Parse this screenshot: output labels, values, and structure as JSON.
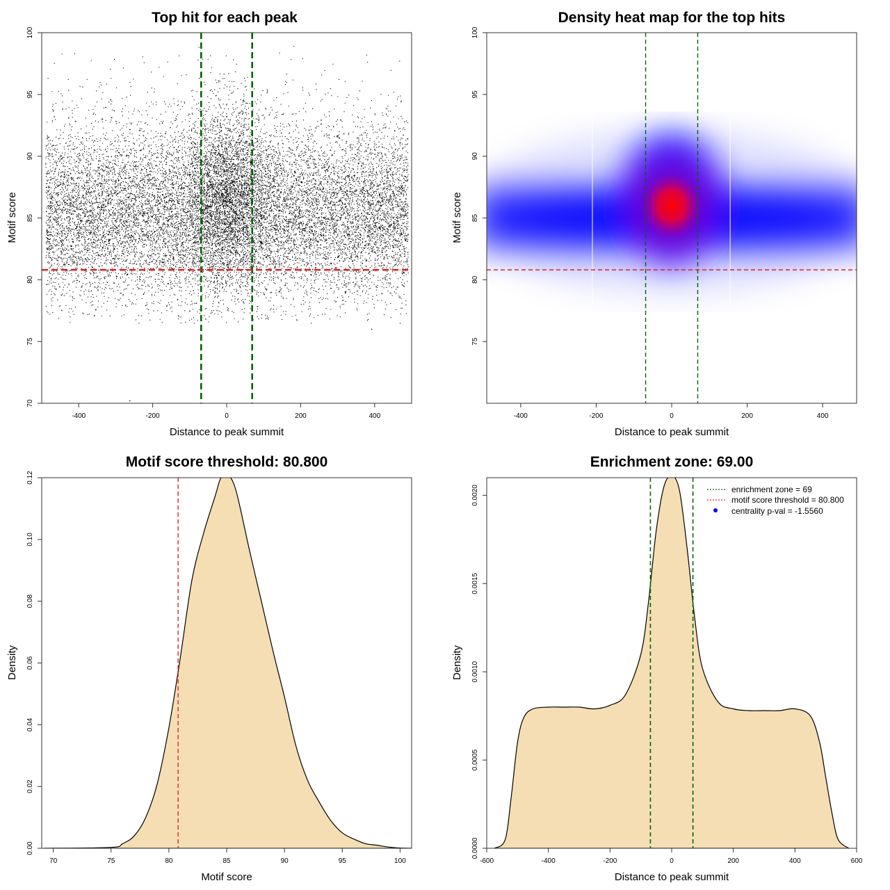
{
  "colors": {
    "threshold": "#dd2222",
    "zone": "#006400",
    "fill": "#f5deb3",
    "point": "#000000",
    "heat_low": "#0000ff",
    "heat_high": "#ff0000",
    "centrality": "#0000ff"
  },
  "chart_data": [
    {
      "type": "scatter",
      "title": "Top hit for each peak",
      "xlabel": "Distance to peak summit",
      "ylabel": "Motif score",
      "xlim": [
        -500,
        500
      ],
      "ylim": [
        70,
        100
      ],
      "xticks": [
        -400,
        -200,
        0,
        200,
        400
      ],
      "yticks": [
        70,
        75,
        80,
        85,
        90,
        95,
        100
      ],
      "xtick_labels": [
        "-400",
        "-200",
        "0",
        "200",
        "400"
      ],
      "ytick_labels": [
        "70",
        "75",
        "80",
        "85",
        "90",
        "95",
        "100"
      ],
      "description": "~25000 points; x uniform in [-490, 490] with central enrichment, y mostly 80-92, centered ~85",
      "x_range": [
        -490,
        490
      ],
      "score_mode": 85,
      "score_spread_sd": 3.4,
      "central_cluster": {
        "x_sd": 60,
        "y_mean": 87,
        "y_sd": 3.5
      },
      "hlines": [
        {
          "y": 80.8,
          "color": "red",
          "style": "dashed"
        }
      ],
      "vlines": [
        {
          "x": -69,
          "color": "darkgreen",
          "style": "dashed"
        },
        {
          "x": 69,
          "color": "darkgreen",
          "style": "dashed"
        }
      ]
    },
    {
      "type": "heatmap",
      "title": "Density heat map for the top hits",
      "xlabel": "Distance to peak summit",
      "ylabel": "Motif score",
      "xlim": [
        -490,
        490
      ],
      "ylim": [
        70,
        100
      ],
      "xticks": [
        -400,
        -200,
        0,
        200,
        400
      ],
      "yticks": [
        75,
        80,
        85,
        90,
        95,
        100
      ],
      "xtick_labels": [
        "-400",
        "-200",
        "0",
        "200",
        "400"
      ],
      "ytick_labels": [
        "75",
        "80",
        "85",
        "90",
        "95",
        "100"
      ],
      "density_peak": {
        "x": 0,
        "y": 86
      },
      "band_y_center": 85,
      "hlines": [
        {
          "y": 80.8,
          "color": "red",
          "style": "dashed"
        }
      ],
      "vlines": [
        {
          "x": -69,
          "color": "darkgreen",
          "style": "dashed"
        },
        {
          "x": 69,
          "color": "darkgreen",
          "style": "dashed"
        }
      ]
    },
    {
      "type": "area",
      "title": "Motif score threshold: 80.800",
      "xlabel": "Motif score",
      "ylabel": "Density",
      "xlim": [
        69,
        101
      ],
      "ylim": [
        0,
        0.12
      ],
      "xticks": [
        70,
        75,
        80,
        85,
        90,
        95,
        100
      ],
      "yticks": [
        0.0,
        0.02,
        0.04,
        0.06,
        0.08,
        0.1,
        0.12
      ],
      "xtick_labels": [
        "70",
        "75",
        "80",
        "85",
        "90",
        "95",
        "100"
      ],
      "ytick_labels": [
        "0.00",
        "0.02",
        "0.04",
        "0.06",
        "0.08",
        "0.10",
        "0.12"
      ],
      "x": [
        69.2,
        75,
        76,
        77,
        78,
        79,
        80,
        81,
        82,
        83,
        84,
        84.5,
        85,
        85.5,
        86,
        87,
        88,
        89,
        90,
        91,
        92,
        93,
        94,
        95,
        96,
        97,
        98,
        99,
        100,
        101
      ],
      "y": [
        0.0,
        0.0003,
        0.0015,
        0.004,
        0.01,
        0.021,
        0.039,
        0.062,
        0.087,
        0.102,
        0.114,
        0.12,
        0.121,
        0.119,
        0.113,
        0.096,
        0.08,
        0.064,
        0.049,
        0.033,
        0.022,
        0.015,
        0.009,
        0.005,
        0.003,
        0.0015,
        0.001,
        0.0004,
        0.0001,
        0.0
      ],
      "vlines": [
        {
          "x": 80.8,
          "color": "red",
          "style": "dashed"
        }
      ]
    },
    {
      "type": "area",
      "title": "Enrichment zone: 69.00",
      "xlabel": "Distance to peak summit",
      "ylabel": "Density",
      "xlim": [
        -600,
        600
      ],
      "ylim": [
        0,
        0.0021
      ],
      "xticks": [
        -600,
        -400,
        -200,
        0,
        200,
        400,
        600
      ],
      "yticks": [
        0.0,
        0.0005,
        0.001,
        0.0015,
        0.002
      ],
      "xtick_labels": [
        "-600",
        "-400",
        "-200",
        "0",
        "200",
        "400",
        "600"
      ],
      "ytick_labels": [
        "0.0000",
        "0.0005",
        "0.0010",
        "0.0015",
        "0.0020"
      ],
      "x": [
        -575,
        -540,
        -520,
        -500,
        -480,
        -450,
        -400,
        -350,
        -300,
        -250,
        -200,
        -150,
        -100,
        -75,
        -50,
        -25,
        0,
        25,
        50,
        75,
        100,
        150,
        200,
        250,
        300,
        350,
        400,
        450,
        480,
        500,
        520,
        540,
        575
      ],
      "y": [
        0.0,
        5e-05,
        0.0003,
        0.0006,
        0.00074,
        0.00079,
        0.0008,
        0.0008,
        0.0008,
        0.00079,
        0.00081,
        0.00087,
        0.0011,
        0.0014,
        0.0018,
        0.00205,
        0.00211,
        0.00203,
        0.0017,
        0.0013,
        0.00102,
        0.00083,
        0.00079,
        0.00078,
        0.00078,
        0.00078,
        0.00079,
        0.00075,
        0.0006,
        0.0004,
        0.0002,
        5e-05,
        0.0
      ],
      "vlines": [
        {
          "x": -69,
          "color": "darkgreen",
          "style": "dashed"
        },
        {
          "x": 69,
          "color": "darkgreen",
          "style": "dashed"
        }
      ],
      "legend": [
        {
          "label": "enrichment zone = 69",
          "kind": "dotted-line",
          "color": "darkgreen"
        },
        {
          "label": "motif score threshold = 80.800",
          "kind": "dotted-line",
          "color": "red"
        },
        {
          "label": "centrality p-val = -1.5560",
          "kind": "point",
          "color": "blue"
        }
      ],
      "legend_position": "top-right"
    }
  ]
}
